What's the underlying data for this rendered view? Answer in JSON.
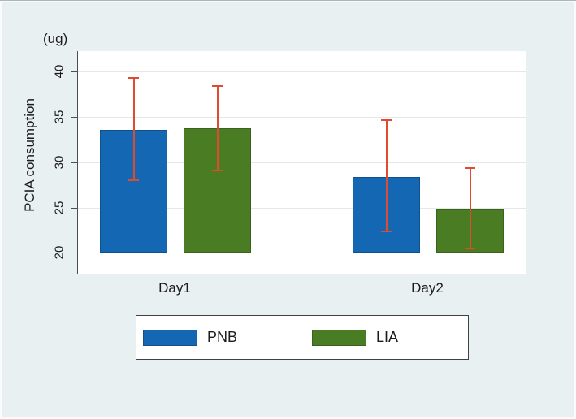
{
  "figure": {
    "background_color": "#e9f0f2",
    "plot_background_color": "#ffffff",
    "gridline_color": "#e3e9ea",
    "axis_line_color": "#4a4f52",
    "text_color": "#1b1b1b"
  },
  "chart_data": {
    "type": "bar",
    "title": "",
    "unit": "(ug)",
    "ylabel": "PCIA consumption",
    "xlabel": "",
    "categories": [
      "Day1",
      "Day2"
    ],
    "series": [
      {
        "name": "PNB",
        "color": "#1467b2",
        "border_color": "#10518c",
        "values": [
          33.6,
          28.4
        ],
        "ci_low": [
          27.9,
          22.3
        ],
        "ci_high": [
          39.4,
          34.7
        ]
      },
      {
        "name": "LIA",
        "color": "#4a7c23",
        "border_color": "#3c611d",
        "values": [
          33.7,
          24.9
        ],
        "ci_low": [
          29.0,
          20.4
        ],
        "ci_high": [
          38.5,
          29.4
        ]
      }
    ],
    "error_bar_color": "#df4b2e",
    "yticks": [
      20,
      25,
      30,
      35,
      40
    ],
    "ytick_labels": [
      "20",
      "25",
      "30",
      "35",
      "40"
    ],
    "baseline_value": 20,
    "ylim": [
      17.7,
      42.25
    ],
    "grid": true,
    "legend_position": "bottom"
  },
  "legend": {
    "items": [
      {
        "label": "PNB"
      },
      {
        "label": "LIA"
      }
    ]
  }
}
